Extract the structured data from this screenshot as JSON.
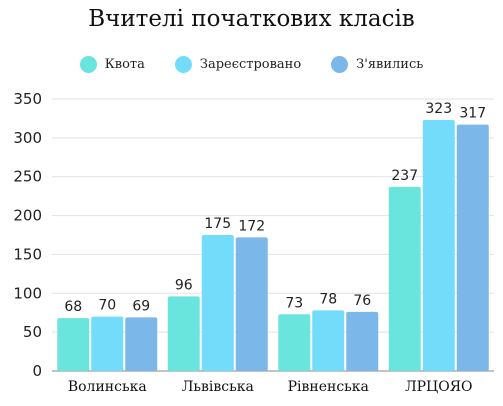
{
  "chart_data": {
    "type": "bar",
    "title": "Вчителі початкових класів",
    "categories": [
      "Волинська",
      "Львівська",
      "Рівненська",
      "ЛРЦОЯО"
    ],
    "series": [
      {
        "name": "Квота",
        "values": [
          68,
          96,
          73,
          237
        ],
        "color": "#6ae5dd"
      },
      {
        "name": "Зареєстровано",
        "values": [
          70,
          175,
          78,
          323
        ],
        "color": "#72dcfa"
      },
      {
        "name": "З'явились",
        "values": [
          69,
          172,
          76,
          317
        ],
        "color": "#7bb8e9"
      }
    ],
    "ylim": [
      0,
      350
    ],
    "yticks": [
      0,
      50,
      100,
      150,
      200,
      250,
      300,
      350
    ],
    "grid": true,
    "legend_position": "top"
  }
}
